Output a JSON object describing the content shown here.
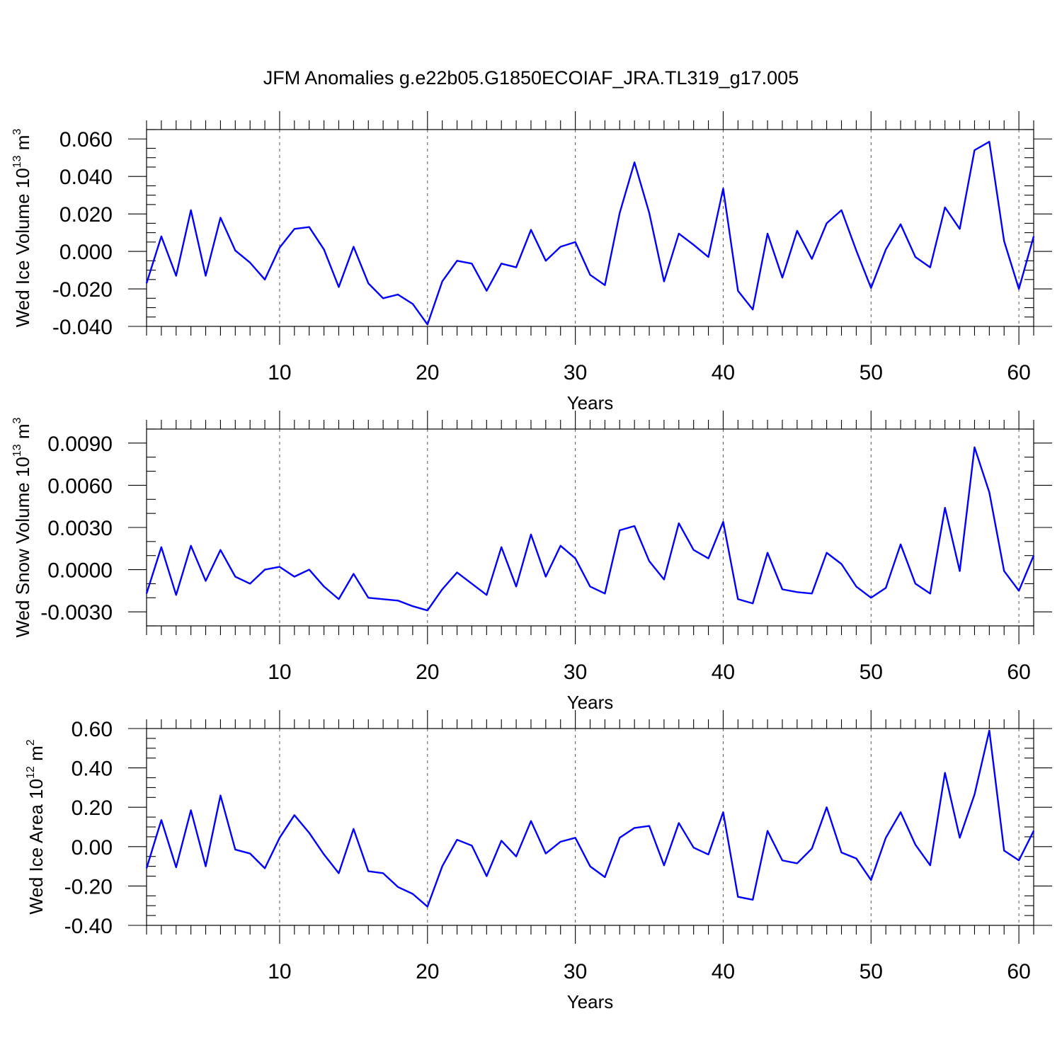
{
  "title": "JFM Anomalies g.e22b05.G1850ECOIAF_JRA.TL319_g17.005",
  "line_color": "#0000ff",
  "chart_data": [
    {
      "type": "line",
      "ylabel_main": "Wed Ice Volume 10",
      "ylabel_sup": "13",
      "ylabel_unit": " m",
      "ylabel_unit_sup": "3",
      "xlabel": "Years",
      "xlim": [
        1,
        61
      ],
      "ylim": [
        -0.04,
        0.065
      ],
      "x_ticks": [
        10,
        20,
        30,
        40,
        50,
        60
      ],
      "x_tick_labels": [
        "10",
        "20",
        "30",
        "40",
        "50",
        "60"
      ],
      "y_ticks": [
        -0.04,
        -0.02,
        0.0,
        0.02,
        0.04,
        0.06
      ],
      "y_tick_labels": [
        "-0.040",
        "-0.020",
        "0.000",
        "0.020",
        "0.040",
        "0.060"
      ],
      "y_minor_step": 0.005,
      "values": [
        -0.017,
        0.008,
        -0.013,
        0.022,
        -0.013,
        0.018,
        0.0005,
        -0.006,
        -0.015,
        0.002,
        0.012,
        0.013,
        0.001,
        -0.019,
        0.0025,
        -0.017,
        -0.025,
        -0.023,
        -0.028,
        -0.039,
        -0.016,
        -0.005,
        -0.0065,
        -0.021,
        -0.0065,
        -0.0085,
        0.0115,
        -0.005,
        0.0025,
        0.005,
        -0.0125,
        -0.018,
        0.0205,
        0.0475,
        0.0205,
        -0.016,
        0.0095,
        0.0035,
        -0.003,
        0.0335,
        -0.021,
        -0.031,
        0.0095,
        -0.014,
        0.011,
        -0.004,
        0.015,
        0.022,
        0.0005,
        -0.0195,
        0.001,
        0.0145,
        -0.003,
        -0.0085,
        0.0235,
        0.012,
        0.054,
        0.0585,
        0.0055,
        -0.02,
        0.008
      ]
    },
    {
      "type": "line",
      "ylabel_main": "Wed Snow Volume 10",
      "ylabel_sup": "13",
      "ylabel_unit": " m",
      "ylabel_unit_sup": "3",
      "xlabel": "Years",
      "xlim": [
        1,
        61
      ],
      "ylim": [
        -0.004,
        0.01
      ],
      "x_ticks": [
        10,
        20,
        30,
        40,
        50,
        60
      ],
      "x_tick_labels": [
        "10",
        "20",
        "30",
        "40",
        "50",
        "60"
      ],
      "y_ticks": [
        -0.003,
        0.0,
        0.003,
        0.006,
        0.009
      ],
      "y_tick_labels": [
        "-0.0030",
        "0.0000",
        "0.0030",
        "0.0060",
        "0.0090"
      ],
      "y_minor_step": 0.001,
      "values": [
        -0.0017,
        0.0016,
        -0.0018,
        0.0017,
        -0.0008,
        0.0014,
        -0.0005,
        -0.001,
        -0.0,
        0.0002,
        -0.0005,
        -0.0,
        -0.0012,
        -0.0021,
        -0.0003,
        -0.002,
        -0.0021,
        -0.0022,
        -0.0026,
        -0.0029,
        -0.0014,
        -0.0002,
        -0.001,
        -0.0018,
        0.0016,
        -0.0012,
        0.0025,
        -0.0005,
        0.0017,
        0.0008,
        -0.0012,
        -0.0017,
        0.0028,
        0.0031,
        0.0006,
        -0.0007,
        0.0033,
        0.0014,
        0.0008,
        0.0034,
        -0.0021,
        -0.0024,
        0.0012,
        -0.0014,
        -0.0016,
        -0.0017,
        0.0012,
        0.0004,
        -0.0012,
        -0.002,
        -0.0013,
        0.0018,
        -0.001,
        -0.0017,
        0.0044,
        -0.0001,
        0.0087,
        0.0055,
        -0.0001,
        -0.0015,
        0.001
      ]
    },
    {
      "type": "line",
      "ylabel_main": "Wed Ice Area 10",
      "ylabel_sup": "12",
      "ylabel_unit": " m",
      "ylabel_unit_sup": "2",
      "xlabel": "Years",
      "xlim": [
        1,
        61
      ],
      "ylim": [
        -0.4,
        0.6
      ],
      "x_ticks": [
        10,
        20,
        30,
        40,
        50,
        60
      ],
      "x_tick_labels": [
        "10",
        "20",
        "30",
        "40",
        "50",
        "60"
      ],
      "y_ticks": [
        -0.4,
        -0.2,
        0.0,
        0.2,
        0.4,
        0.6
      ],
      "y_tick_labels": [
        "-0.40",
        "-0.20",
        "0.00",
        "0.20",
        "0.40",
        "0.60"
      ],
      "y_minor_step": 0.05,
      "values": [
        -0.11,
        0.135,
        -0.105,
        0.185,
        -0.1,
        0.26,
        -0.015,
        -0.035,
        -0.11,
        0.045,
        0.16,
        0.07,
        -0.04,
        -0.135,
        0.09,
        -0.125,
        -0.135,
        -0.205,
        -0.24,
        -0.305,
        -0.1,
        0.035,
        0.005,
        -0.15,
        0.03,
        -0.05,
        0.13,
        -0.035,
        0.025,
        0.045,
        -0.1,
        -0.155,
        0.045,
        0.095,
        0.105,
        -0.095,
        0.12,
        -0.005,
        -0.04,
        0.175,
        -0.255,
        -0.27,
        0.08,
        -0.07,
        -0.085,
        -0.01,
        0.2,
        -0.03,
        -0.06,
        -0.17,
        0.045,
        0.175,
        0.01,
        -0.095,
        0.375,
        0.045,
        0.265,
        0.59,
        -0.02,
        -0.07,
        0.08
      ]
    }
  ]
}
